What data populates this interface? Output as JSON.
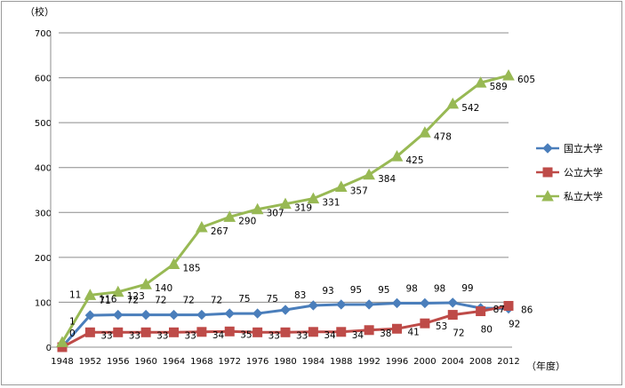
{
  "chart_data": {
    "type": "line",
    "ylabel": "（校）",
    "xlabel": "（年度）",
    "ylim": [
      0,
      700
    ],
    "yticks": [
      0,
      100,
      200,
      300,
      400,
      500,
      600,
      700
    ],
    "categories": [
      "1948",
      "1952",
      "1956",
      "1960",
      "1964",
      "1968",
      "1972",
      "1976",
      "1980",
      "1984",
      "1988",
      "1992",
      "1996",
      "2000",
      "2004",
      "2008",
      "2012"
    ],
    "grid": "horizontal",
    "legend_position": "right",
    "series": [
      {
        "name": "国立大学",
        "color": "#4a7ebb",
        "marker": "diamond",
        "values": [
          1,
          71,
          72,
          72,
          72,
          72,
          75,
          75,
          83,
          93,
          95,
          95,
          98,
          98,
          99,
          87,
          86
        ],
        "labels": [
          "1",
          "71",
          "72",
          "72",
          "72",
          "72",
          "75",
          "75",
          "83",
          "93",
          "95",
          "95",
          "98",
          "98",
          "99",
          "87",
          "86"
        ]
      },
      {
        "name": "公立大学",
        "color": "#be4b48",
        "marker": "square",
        "values": [
          0,
          33,
          33,
          33,
          33,
          34,
          35,
          33,
          33,
          34,
          34,
          38,
          41,
          53,
          72,
          80,
          92
        ],
        "labels": [
          "0",
          "33",
          "33",
          "33",
          "33",
          "34",
          "35",
          "33",
          "33",
          "34",
          "34",
          "38",
          "41",
          "53",
          "72",
          "80",
          "92"
        ]
      },
      {
        "name": "私立大学",
        "color": "#98b954",
        "marker": "triangle",
        "values": [
          11,
          116,
          123,
          140,
          185,
          267,
          290,
          307,
          319,
          331,
          357,
          384,
          425,
          478,
          542,
          589,
          605
        ],
        "labels": [
          "11",
          "116",
          "123",
          "140",
          "185",
          "267",
          "290",
          "307",
          "319",
          "331",
          "357",
          "384",
          "425",
          "478",
          "542",
          "589",
          "605"
        ]
      }
    ]
  }
}
